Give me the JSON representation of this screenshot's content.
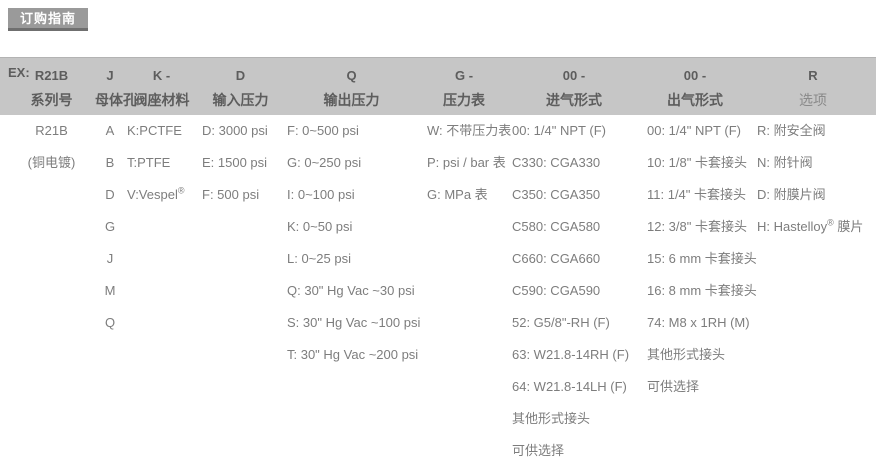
{
  "page": {
    "button_label": "订购指南",
    "example_prefix": "EX:"
  },
  "colors": {
    "header_bg": "#c6c6c6",
    "header_text": "#5d5d5d",
    "body_text": "#7d7d7d",
    "button_bg": "#9a9a9a",
    "button_text": "#ffffff"
  },
  "columns": [
    {
      "code": "R21B",
      "label": "系列号",
      "items": [
        "R21B",
        "(铜电镀)"
      ]
    },
    {
      "code": "J",
      "label": "母体孔",
      "items": [
        "A",
        "B",
        "D",
        "G",
        "J",
        "M",
        "Q"
      ]
    },
    {
      "code": "K -",
      "label": "阀座材料",
      "items": [
        "K:PCTFE",
        "T:PTFE",
        "V:Vespel®"
      ]
    },
    {
      "code": "D",
      "label": "输入压力",
      "items": [
        "D: 3000 psi",
        "E: 1500 psi",
        "F: 500 psi"
      ]
    },
    {
      "code": "Q",
      "label": "输出压力",
      "items": [
        "F: 0~500 psi",
        "G: 0~250 psi",
        "I: 0~100 psi",
        "K: 0~50 psi",
        "L: 0~25 psi",
        "Q: 30\" Hg Vac ~30 psi",
        "S: 30\" Hg Vac ~100 psi",
        "T: 30\" Hg Vac ~200 psi"
      ]
    },
    {
      "code": "G -",
      "label": "压力表",
      "items": [
        "W: 不带压力表",
        "P: psi / bar 表",
        "G: MPa 表"
      ]
    },
    {
      "code": "00 -",
      "label": "进气形式",
      "items": [
        "00: 1/4\" NPT (F)",
        "C330: CGA330",
        "C350: CGA350",
        "C580: CGA580",
        "C660: CGA660",
        "C590: CGA590",
        "52: G5/8\"-RH (F)",
        "63: W21.8-14RH (F)",
        "64: W21.8-14LH (F)",
        "其他形式接头",
        "可供选择"
      ]
    },
    {
      "code": "00 -",
      "label": "出气形式",
      "items": [
        "00: 1/4\" NPT (F)",
        "10: 1/8\" 卡套接头",
        "11: 1/4\" 卡套接头",
        "12: 3/8\" 卡套接头",
        "15: 6 mm 卡套接头",
        "16: 8 mm 卡套接头",
        "74: M8 x 1RH (M)",
        "其他形式接头",
        "可供选择"
      ]
    },
    {
      "code": "R",
      "label": "选项",
      "items": [
        "R: 附安全阀",
        "N: 附针阀",
        "D: 附膜片阀",
        "H: Hastelloy® 膜片"
      ]
    }
  ]
}
